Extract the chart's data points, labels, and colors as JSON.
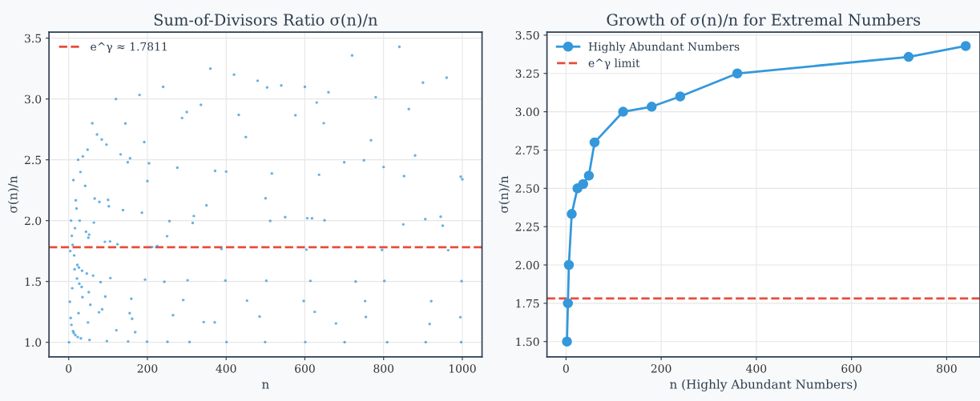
{
  "chart_data": [
    {
      "type": "scatter",
      "title": "Sum-of-Divisors Ratio σ(n)/n",
      "xlabel": "n",
      "ylabel": "σ(n)/n",
      "xlim": [
        -50,
        1050
      ],
      "xticks": [
        0,
        200,
        400,
        600,
        800,
        1000
      ],
      "ylim": [
        0.88,
        3.55
      ],
      "yticks": [
        {
          "value": 1.0,
          "label": "1.0"
        },
        1.5,
        {
          "value": 2.0,
          "label": "2.0"
        },
        2.5,
        {
          "value": 3.0,
          "label": "3.0"
        },
        3.5
      ],
      "grid": true,
      "legend": "top left",
      "marker": "circle",
      "series": [
        {
          "color": "#3498db",
          "x": [
            1,
            3,
            4,
            5,
            6,
            7,
            8,
            9,
            10,
            11,
            12,
            13,
            14,
            15,
            16,
            17,
            18,
            20,
            21,
            22,
            23,
            24,
            25,
            26,
            27,
            28,
            30,
            31,
            33,
            34,
            35,
            36,
            42,
            44,
            46,
            48,
            49,
            50,
            51,
            52,
            53,
            55,
            60,
            62,
            64,
            66,
            72,
            77,
            78,
            81,
            84,
            85,
            92,
            93,
            96,
            97,
            100,
            102,
            105,
            106,
            120,
            121,
            124,
            132,
            138,
            144,
            150,
            151,
            155,
            156,
            159,
            161,
            169,
            180,
            186,
            192,
            194,
            199,
            200,
            204,
            212,
            225,
            240,
            243,
            250,
            251,
            256,
            265,
            276,
            288,
            291,
            300,
            302,
            307,
            315,
            318,
            336,
            343,
            350,
            360,
            371,
            372,
            388,
            398,
            400,
            401,
            420,
            432,
            450,
            453,
            480,
            485,
            499,
            500,
            502,
            504,
            512,
            516,
            540,
            550,
            576,
            597,
            600,
            601,
            604,
            606,
            614,
            618,
            625,
            630,
            636,
            648,
            650,
            660,
            679,
            700,
            701,
            720,
            729,
            750,
            753,
            755,
            768,
            780,
            796,
            800,
            802,
            809,
            840,
            850,
            852,
            864,
            880,
            900,
            906,
            907,
            917,
            921,
            945,
            950,
            960,
            964,
            995,
            996,
            997,
            998,
            1000
          ],
          "values": [
            1.0,
            1.333,
            1.75,
            1.2,
            2.0,
            1.143,
            1.875,
            1.444,
            1.8,
            1.091,
            2.333,
            1.077,
            1.714,
            1.6,
            1.938,
            1.059,
            2.167,
            2.1,
            1.524,
            1.636,
            1.043,
            2.5,
            1.24,
            1.615,
            1.481,
            2.0,
            2.4,
            1.032,
            1.455,
            1.588,
            1.371,
            2.528,
            2.286,
            1.909,
            1.565,
            2.583,
            1.163,
            1.86,
            1.412,
            1.885,
            1.019,
            1.309,
            2.8,
            1.548,
            1.984,
            2.182,
            2.708,
            1.247,
            2.154,
            1.494,
            2.667,
            1.271,
            1.826,
            1.376,
            2.625,
            1.01,
            2.17,
            2.118,
            1.829,
            1.528,
            3.0,
            1.099,
            1.806,
            2.545,
            2.087,
            2.799,
            2.48,
            1.007,
            1.239,
            2.513,
            1.358,
            1.193,
            1.083,
            3.033,
            2.065,
            2.646,
            1.515,
            1.005,
            2.325,
            2.471,
            1.783,
            1.791,
            3.1,
            1.498,
            1.872,
            1.004,
            1.996,
            1.223,
            2.435,
            2.844,
            1.347,
            2.893,
            1.51,
            1.003,
            1.981,
            2.038,
            2.952,
            1.166,
            2.126,
            3.25,
            1.164,
            2.409,
            1.768,
            1.508,
            2.403,
            1.002,
            3.2,
            2.87,
            2.687,
            1.342,
            3.15,
            1.212,
            1.002,
            2.184,
            1.506,
            3.095,
            1.998,
            2.388,
            3.111,
            2.029,
            2.866,
            1.34,
            3.1,
            1.002,
            1.762,
            2.02,
            1.505,
            2.019,
            1.25,
            2.971,
            2.377,
            2.801,
            2.003,
            3.055,
            1.155,
            2.48,
            1.001,
            3.358,
            1.499,
            2.496,
            1.339,
            1.208,
            2.661,
            3.015,
            1.759,
            2.441,
            1.504,
            1.001,
            3.429,
            1.969,
            2.366,
            2.917,
            2.536,
            3.134,
            2.013,
            1.001,
            1.151,
            1.338,
            2.032,
            1.958,
            3.175,
            1.757,
            1.206,
            2.361,
            1.001,
            1.503,
            2.34
          ]
        }
      ],
      "ref_lines": [
        {
          "axis": "y",
          "value": 1.7811,
          "label": "e^γ ≈ 1.7811",
          "color": "#e74c3c",
          "line_style": "dashed"
        }
      ]
    },
    {
      "type": "line",
      "title": "Growth of σ(n)/n for Extremal Numbers",
      "xlabel": "n (Highly Abundant Numbers)",
      "ylabel": "σ(n)/n",
      "xlim": [
        -40,
        870
      ],
      "xticks": [
        0,
        200,
        400,
        600,
        800
      ],
      "ylim": [
        1.4,
        3.52
      ],
      "yticks": [
        {
          "value": 1.5,
          "label": "1.50"
        },
        {
          "value": 1.75,
          "label": "1.75"
        },
        {
          "value": 2.0,
          "label": "2.00"
        },
        {
          "value": 2.25,
          "label": "2.25"
        },
        {
          "value": 2.5,
          "label": "2.50"
        },
        {
          "value": 2.75,
          "label": "2.75"
        },
        {
          "value": 3.0,
          "label": "3.00"
        },
        {
          "value": 3.25,
          "label": "3.25"
        },
        {
          "value": 3.5,
          "label": "3.50"
        }
      ],
      "grid": true,
      "legend": "top left",
      "marker": "circle",
      "line_style": "solid",
      "x": [
        2,
        4,
        6,
        12,
        24,
        36,
        48,
        60,
        120,
        180,
        240,
        360,
        720,
        840
      ],
      "series": [
        {
          "name": "Highly Abundant Numbers",
          "color": "#3498db",
          "values": [
            1.5,
            1.75,
            2.0,
            2.333,
            2.5,
            2.528,
            2.583,
            2.8,
            3.0,
            3.033,
            3.1,
            3.25,
            3.358,
            3.429
          ]
        }
      ],
      "ref_lines": [
        {
          "axis": "y",
          "value": 1.7811,
          "label": "e^γ limit",
          "color": "#e74c3c",
          "line_style": "dashed"
        }
      ]
    }
  ]
}
